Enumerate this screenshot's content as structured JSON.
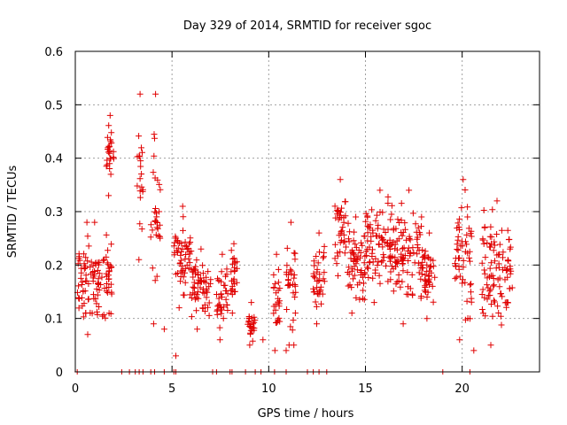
{
  "chart_data": {
    "type": "scatter",
    "title": "Day 329 of 2014, SRMTID for receiver sgoc",
    "xlabel": "GPS time / hours",
    "ylabel": "SRMTID / TECUs",
    "xlim": [
      0,
      24
    ],
    "ylim": [
      0,
      0.6
    ],
    "xticks": [
      0,
      5,
      10,
      15,
      20
    ],
    "yticks": [
      0,
      0.1,
      0.2,
      0.3,
      0.4,
      0.5,
      0.6
    ],
    "grid": true,
    "marker": "+",
    "color": "#e00000",
    "note": "Dense scatter; values below are representative estimates read from the figure.",
    "clusters": [
      {
        "x": [
          0.1,
          1.9
        ],
        "y": [
          0.07,
          0.28
        ]
      },
      {
        "x": [
          1.6,
          2.0
        ],
        "y": [
          0.33,
          0.48
        ]
      },
      {
        "x": [
          3.2,
          3.5
        ],
        "y": [
          0.21,
          0.52
        ]
      },
      {
        "x": [
          3.9,
          4.4
        ],
        "y": [
          0.09,
          0.52
        ]
      },
      {
        "x": [
          5.1,
          6.0
        ],
        "y": [
          0.12,
          0.31
        ]
      },
      {
        "x": [
          6.0,
          7.0
        ],
        "y": [
          0.08,
          0.23
        ]
      },
      {
        "x": [
          7.3,
          7.9
        ],
        "y": [
          0.06,
          0.22
        ]
      },
      {
        "x": [
          8.0,
          8.4
        ],
        "y": [
          0.11,
          0.24
        ]
      },
      {
        "x": [
          8.9,
          9.3
        ],
        "y": [
          0.05,
          0.13
        ]
      },
      {
        "x": [
          10.2,
          10.6
        ],
        "y": [
          0.04,
          0.22
        ]
      },
      {
        "x": [
          10.9,
          11.4
        ],
        "y": [
          0.05,
          0.28
        ]
      },
      {
        "x": [
          12.3,
          12.9
        ],
        "y": [
          0.09,
          0.26
        ]
      },
      {
        "x": [
          13.4,
          14.0
        ],
        "y": [
          0.18,
          0.36
        ]
      },
      {
        "x": [
          14.0,
          15.0
        ],
        "y": [
          0.11,
          0.29
        ]
      },
      {
        "x": [
          15.0,
          16.5
        ],
        "y": [
          0.13,
          0.34
        ]
      },
      {
        "x": [
          16.5,
          18.0
        ],
        "y": [
          0.09,
          0.34
        ]
      },
      {
        "x": [
          18.0,
          18.6
        ],
        "y": [
          0.1,
          0.26
        ]
      },
      {
        "x": [
          19.6,
          20.5
        ],
        "y": [
          0.06,
          0.36
        ]
      },
      {
        "x": [
          21.0,
          22.6
        ],
        "y": [
          0.05,
          0.32
        ]
      }
    ],
    "extra_points": [
      {
        "x": 0.6,
        "y": 0.28
      },
      {
        "x": 4.6,
        "y": 0.08
      },
      {
        "x": 5.2,
        "y": 0.03
      },
      {
        "x": 9.7,
        "y": 0.06
      },
      {
        "x": 10.9,
        "y": 0.04
      },
      {
        "x": 11.3,
        "y": 0.05
      },
      {
        "x": 20.6,
        "y": 0.04
      }
    ],
    "zero_points": [
      0.1,
      2.4,
      2.8,
      3.1,
      3.3,
      3.5,
      3.9,
      4.1,
      4.6,
      5.1,
      5.2,
      7.1,
      7.3,
      8.0,
      8.1,
      8.8,
      9.3,
      9.6,
      10.3,
      10.9,
      12.0,
      12.3,
      12.6,
      13.0,
      19.0,
      20.4
    ]
  }
}
